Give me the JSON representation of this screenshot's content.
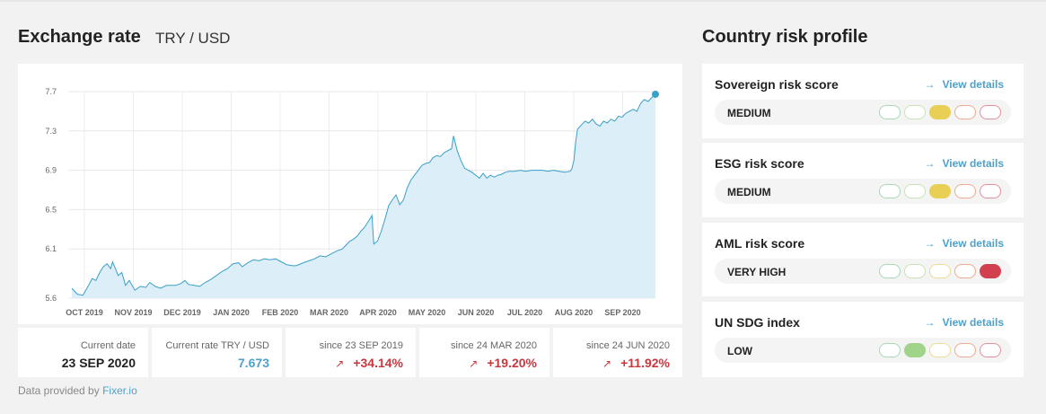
{
  "header": {
    "title": "Exchange rate",
    "pair": "TRY / USD"
  },
  "risk_title": "Country risk profile",
  "chart_data": {
    "type": "area",
    "y_ticks": [
      "7.7",
      "7.3",
      "6.9",
      "6.5",
      "6.1",
      "5.6"
    ],
    "x_ticks": [
      "OCT 2019",
      "NOV 2019",
      "DEC 2019",
      "JAN 2020",
      "FEB 2020",
      "MAR 2020",
      "APR 2020",
      "MAY 2020",
      "JUN 2020",
      "JUL 2020",
      "AUG 2020",
      "SEP 2020"
    ],
    "ylim": [
      5.6,
      7.7
    ],
    "grid": true,
    "line_color": "#3a9fc9",
    "fill_color": "#dceef7",
    "series": [
      {
        "values": [
          [
            0,
            5.7
          ],
          [
            3,
            5.64
          ],
          [
            6,
            5.63
          ],
          [
            9,
            5.73
          ],
          [
            11,
            5.8
          ],
          [
            13,
            5.78
          ],
          [
            15,
            5.86
          ],
          [
            17,
            5.92
          ],
          [
            19,
            5.95
          ],
          [
            21,
            5.9
          ],
          [
            22,
            5.97
          ],
          [
            25,
            5.83
          ],
          [
            27,
            5.86
          ],
          [
            29,
            5.73
          ],
          [
            31,
            5.78
          ],
          [
            34,
            5.68
          ],
          [
            37,
            5.72
          ],
          [
            40,
            5.71
          ],
          [
            42,
            5.76
          ],
          [
            45,
            5.72
          ],
          [
            48,
            5.7
          ],
          [
            51,
            5.73
          ],
          [
            54,
            5.73
          ],
          [
            56,
            5.73
          ],
          [
            59,
            5.75
          ],
          [
            61,
            5.78
          ],
          [
            63,
            5.74
          ],
          [
            66,
            5.73
          ],
          [
            69,
            5.72
          ],
          [
            72,
            5.76
          ],
          [
            75,
            5.79
          ],
          [
            78,
            5.83
          ],
          [
            81,
            5.87
          ],
          [
            84,
            5.9
          ],
          [
            87,
            5.95
          ],
          [
            90,
            5.96
          ],
          [
            92,
            5.92
          ],
          [
            95,
            5.96
          ],
          [
            98,
            5.99
          ],
          [
            101,
            5.98
          ],
          [
            104,
            6.0
          ],
          [
            107,
            5.99
          ],
          [
            110,
            6.0
          ],
          [
            113,
            5.97
          ],
          [
            116,
            5.94
          ],
          [
            119,
            5.93
          ],
          [
            121,
            5.93
          ],
          [
            125,
            5.96
          ],
          [
            128,
            5.98
          ],
          [
            131,
            6.0
          ],
          [
            134,
            6.03
          ],
          [
            137,
            6.02
          ],
          [
            140,
            6.05
          ],
          [
            143,
            6.08
          ],
          [
            146,
            6.1
          ],
          [
            148,
            6.14
          ],
          [
            150,
            6.18
          ],
          [
            152,
            6.2
          ],
          [
            154,
            6.23
          ],
          [
            156,
            6.28
          ],
          [
            158,
            6.32
          ],
          [
            160,
            6.38
          ],
          [
            162,
            6.44
          ],
          [
            163,
            6.15
          ],
          [
            165,
            6.18
          ],
          [
            167,
            6.28
          ],
          [
            169,
            6.4
          ],
          [
            171,
            6.54
          ],
          [
            173,
            6.6
          ],
          [
            175,
            6.65
          ],
          [
            177,
            6.55
          ],
          [
            179,
            6.6
          ],
          [
            181,
            6.72
          ],
          [
            183,
            6.8
          ],
          [
            185,
            6.85
          ],
          [
            187,
            6.9
          ],
          [
            189,
            6.95
          ],
          [
            191,
            6.97
          ],
          [
            193,
            6.98
          ],
          [
            195,
            7.03
          ],
          [
            197,
            7.05
          ],
          [
            199,
            7.04
          ],
          [
            201,
            7.08
          ],
          [
            203,
            7.1
          ],
          [
            205,
            7.12
          ],
          [
            206,
            7.25
          ],
          [
            208,
            7.1
          ],
          [
            210,
            7.0
          ],
          [
            212,
            6.92
          ],
          [
            214,
            6.9
          ],
          [
            216,
            6.88
          ],
          [
            218,
            6.85
          ],
          [
            220,
            6.82
          ],
          [
            222,
            6.87
          ],
          [
            224,
            6.82
          ],
          [
            226,
            6.85
          ],
          [
            228,
            6.83
          ],
          [
            230,
            6.85
          ],
          [
            232,
            6.86
          ],
          [
            234,
            6.88
          ],
          [
            236,
            6.89
          ],
          [
            239,
            6.89
          ],
          [
            242,
            6.9
          ],
          [
            245,
            6.89
          ],
          [
            248,
            6.9
          ],
          [
            251,
            6.9
          ],
          [
            254,
            6.9
          ],
          [
            257,
            6.89
          ],
          [
            260,
            6.9
          ],
          [
            263,
            6.89
          ],
          [
            266,
            6.88
          ],
          [
            269,
            6.89
          ],
          [
            270,
            6.92
          ],
          [
            271,
            7.0
          ],
          [
            272,
            7.2
          ],
          [
            273,
            7.32
          ],
          [
            275,
            7.36
          ],
          [
            277,
            7.4
          ],
          [
            279,
            7.38
          ],
          [
            281,
            7.42
          ],
          [
            283,
            7.37
          ],
          [
            285,
            7.35
          ],
          [
            287,
            7.4
          ],
          [
            289,
            7.38
          ],
          [
            291,
            7.42
          ],
          [
            293,
            7.4
          ],
          [
            295,
            7.45
          ],
          [
            297,
            7.44
          ],
          [
            299,
            7.48
          ],
          [
            301,
            7.5
          ],
          [
            303,
            7.52
          ],
          [
            305,
            7.5
          ],
          [
            307,
            7.58
          ],
          [
            309,
            7.62
          ],
          [
            311,
            7.6
          ],
          [
            313,
            7.64
          ],
          [
            315,
            7.67
          ]
        ]
      }
    ],
    "last_point_value": 7.673
  },
  "stats": [
    {
      "label": "Current date",
      "value": "23 SEP 2020",
      "style": "dark",
      "arrow": ""
    },
    {
      "label": "Current rate TRY / USD",
      "value": "7.673",
      "style": "blue",
      "arrow": ""
    },
    {
      "label": "since 23 SEP 2019",
      "value": "+34.14%",
      "style": "red",
      "arrow": "↗"
    },
    {
      "label": "since 24 MAR 2020",
      "value": "+19.20%",
      "style": "red",
      "arrow": "↗"
    },
    {
      "label": "since 24 JUN 2020",
      "value": "+11.92%",
      "style": "red",
      "arrow": "↗"
    }
  ],
  "credit": {
    "prefix": "Data provided by",
    "link": "Fixer.io"
  },
  "risk_cards": [
    {
      "name": "Sovereign risk score",
      "link": "View details",
      "level": "MEDIUM",
      "active": 2
    },
    {
      "name": "ESG risk score",
      "link": "View details",
      "level": "MEDIUM",
      "active": 2
    },
    {
      "name": "AML risk score",
      "link": "View details",
      "level": "VERY HIGH",
      "active": 4
    },
    {
      "name": "UN SDG index",
      "link": "View details",
      "level": "LOW",
      "active": 1
    }
  ],
  "dot_colors": {
    "border": [
      "#a8d9b4",
      "#c7e3b5",
      "#f0dc93",
      "#f2a98f",
      "#e3909a"
    ],
    "fill": [
      "#7fcf91",
      "#9fd48a",
      "#e8cf55",
      "#ef9a7e",
      "#d2404f"
    ]
  }
}
